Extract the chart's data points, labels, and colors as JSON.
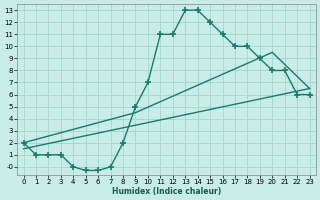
{
  "xlabel": "Humidex (Indice chaleur)",
  "ylabel": "",
  "background_color": "#c8ece6",
  "grid_color": "#a8d8d0",
  "line_color": "#1a7a6e",
  "xlim": [
    -0.5,
    23.5
  ],
  "ylim": [
    -0.7,
    13.5
  ],
  "xticks": [
    0,
    1,
    2,
    3,
    4,
    5,
    6,
    7,
    8,
    9,
    10,
    11,
    12,
    13,
    14,
    15,
    16,
    17,
    18,
    19,
    20,
    21,
    22,
    23
  ],
  "yticks": [
    0,
    1,
    2,
    3,
    4,
    5,
    6,
    7,
    8,
    9,
    10,
    11,
    12,
    13
  ],
  "ytick_labels": [
    "-0",
    "1",
    "2",
    "3",
    "4",
    "5",
    "6",
    "7",
    "8",
    "9",
    "10",
    "11",
    "12",
    "13"
  ],
  "line1_x": [
    0,
    1,
    2,
    3,
    4,
    5,
    6,
    7,
    8,
    9,
    10,
    11,
    12,
    13,
    14,
    15,
    16,
    17,
    18,
    19,
    20,
    21,
    22,
    23
  ],
  "line1_y": [
    2,
    1,
    1,
    1,
    0,
    -0.3,
    -0.3,
    0,
    2,
    5,
    7,
    11,
    11,
    13,
    13,
    12,
    11,
    10,
    10,
    9,
    8,
    8,
    6,
    6
  ],
  "line2_x": [
    0,
    9,
    20,
    23
  ],
  "line2_y": [
    2,
    4.5,
    9.5,
    6.5
  ],
  "line3_x": [
    0,
    23
  ],
  "line3_y": [
    1.5,
    6.5
  ]
}
